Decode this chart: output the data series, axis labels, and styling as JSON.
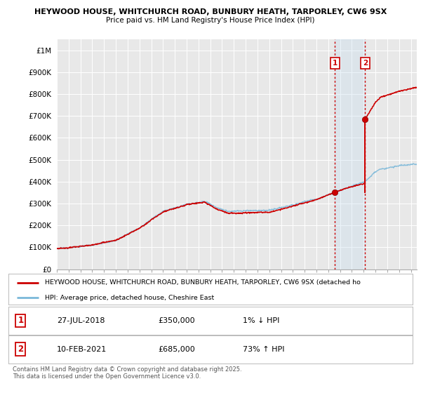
{
  "title_line1": "HEYWOOD HOUSE, WHITCHURCH ROAD, BUNBURY HEATH, TARPORLEY, CW6 9SX",
  "title_line2": "Price paid vs. HM Land Registry's House Price Index (HPI)",
  "ylim": [
    0,
    1050000
  ],
  "yticks": [
    0,
    100000,
    200000,
    300000,
    400000,
    500000,
    600000,
    700000,
    800000,
    900000,
    1000000
  ],
  "ytick_labels": [
    "£0",
    "£100K",
    "£200K",
    "£300K",
    "£400K",
    "£500K",
    "£600K",
    "£700K",
    "£800K",
    "£900K",
    "£1M"
  ],
  "hpi_color": "#7ab8d9",
  "price_color": "#cc0000",
  "vline_color": "#cc0000",
  "shade_color": "#ddeeff",
  "sale1_year": 2018.57,
  "sale1_price": 350000,
  "sale2_year": 2021.12,
  "sale2_price": 685000,
  "legend_line1": "HEYWOOD HOUSE, WHITCHURCH ROAD, BUNBURY HEATH, TARPORLEY, CW6 9SX (detached ho",
  "legend_line2": "HPI: Average price, detached house, Cheshire East",
  "row1_badge": "1",
  "row1_date": "27-JUL-2018",
  "row1_price": "£350,000",
  "row1_hpi": "1% ↓ HPI",
  "row2_badge": "2",
  "row2_date": "10-FEB-2021",
  "row2_price": "£685,000",
  "row2_hpi": "73% ↑ HPI",
  "footnote": "Contains HM Land Registry data © Crown copyright and database right 2025.\nThis data is licensed under the Open Government Licence v3.0.",
  "xmin": 1995,
  "xmax": 2025.5,
  "background_color": "#ffffff",
  "plot_bg_color": "#e8e8e8"
}
